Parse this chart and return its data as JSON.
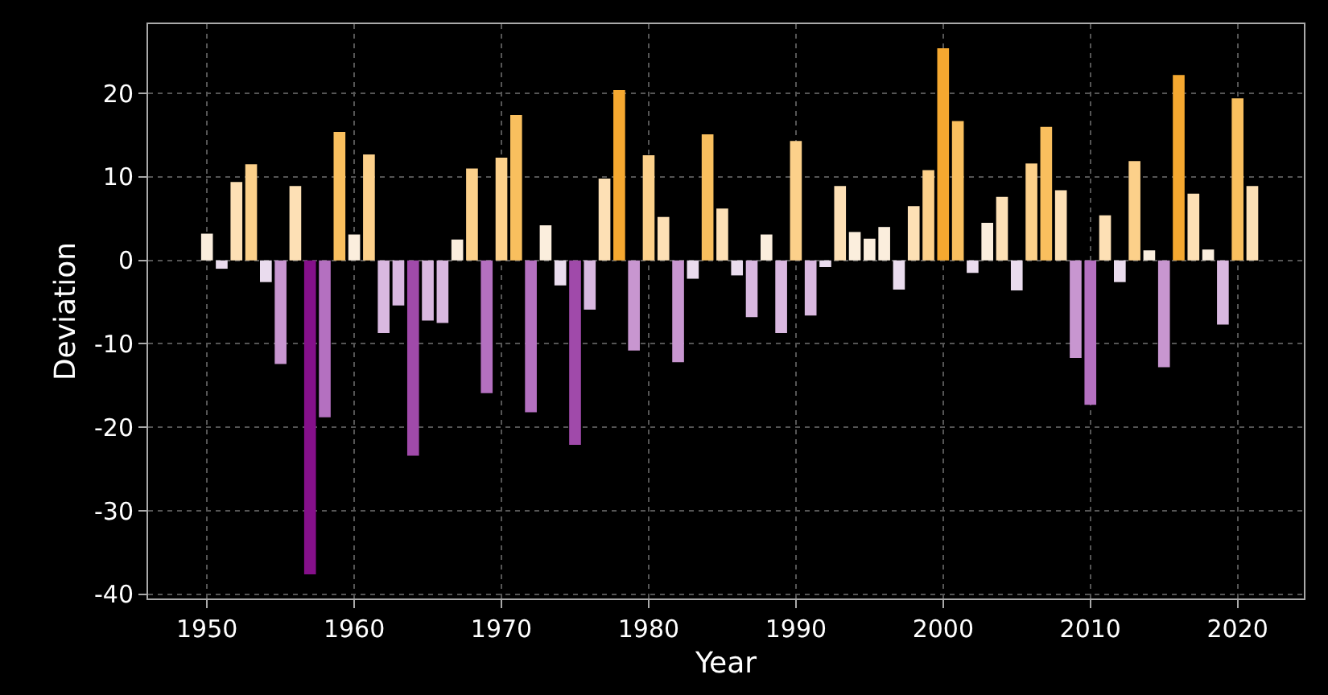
{
  "chart_data": {
    "type": "bar",
    "xlabel": "Year",
    "ylabel": "Deviation",
    "x": [
      1950,
      1951,
      1952,
      1953,
      1954,
      1955,
      1956,
      1957,
      1958,
      1959,
      1960,
      1961,
      1962,
      1963,
      1964,
      1965,
      1966,
      1967,
      1968,
      1969,
      1970,
      1971,
      1972,
      1973,
      1974,
      1975,
      1976,
      1977,
      1978,
      1979,
      1980,
      1981,
      1982,
      1983,
      1984,
      1985,
      1986,
      1987,
      1988,
      1989,
      1990,
      1991,
      1992,
      1993,
      1994,
      1995,
      1996,
      1997,
      1998,
      1999,
      2000,
      2001,
      2002,
      2003,
      2004,
      2005,
      2006,
      2007,
      2008,
      2009,
      2010,
      2011,
      2012,
      2013,
      2014,
      2015,
      2016,
      2017,
      2018,
      2019,
      2020,
      2021
    ],
    "values": [
      3.2,
      -1.0,
      9.4,
      11.5,
      -2.6,
      -12.4,
      8.9,
      -37.6,
      -18.8,
      15.4,
      3.1,
      12.7,
      -8.7,
      -5.4,
      -23.4,
      -7.2,
      -7.5,
      2.5,
      11.0,
      -15.9,
      12.3,
      17.4,
      -18.2,
      4.2,
      -3.0,
      -22.1,
      -5.9,
      9.8,
      20.4,
      -10.8,
      12.6,
      5.2,
      -12.2,
      -2.2,
      15.1,
      6.2,
      -1.8,
      -6.8,
      3.1,
      -8.7,
      14.3,
      -6.6,
      -0.8,
      8.9,
      3.4,
      2.6,
      4.0,
      -3.5,
      6.5,
      10.8,
      25.4,
      16.7,
      -1.5,
      4.5,
      7.6,
      -3.6,
      11.6,
      16.0,
      8.4,
      -11.7,
      -17.3,
      5.4,
      -2.6,
      11.9,
      1.2,
      -12.8,
      22.2,
      8.0,
      1.3,
      -7.7,
      19.4,
      8.9
    ],
    "colors": [
      "#fbeedd",
      "#eadcee",
      "#fde0b5",
      "#fcd08a",
      "#eadcee",
      "#c896d0",
      "#fde0b5",
      "#85108a",
      "#b470c0",
      "#f9bf5e",
      "#fbeedd",
      "#fcd08a",
      "#d9b8e0",
      "#d9b8e0",
      "#a04aaa",
      "#d9b8e0",
      "#d9b8e0",
      "#fbeedd",
      "#fcd08a",
      "#b470c0",
      "#fcd08a",
      "#f9bf5e",
      "#b470c0",
      "#fbeedd",
      "#eadcee",
      "#a04aaa",
      "#d9b8e0",
      "#fde0b5",
      "#f5a830",
      "#c896d0",
      "#fcd08a",
      "#fde0b5",
      "#c896d0",
      "#eadcee",
      "#f9bf5e",
      "#fde0b5",
      "#eadcee",
      "#d9b8e0",
      "#fbeedd",
      "#d9b8e0",
      "#fcd08a",
      "#d9b8e0",
      "#eadcee",
      "#fde0b5",
      "#fbeedd",
      "#fbeedd",
      "#fbeedd",
      "#eadcee",
      "#fde0b5",
      "#fcd08a",
      "#f5a830",
      "#f9bf5e",
      "#eadcee",
      "#fbeedd",
      "#fde0b5",
      "#eadcee",
      "#fcd08a",
      "#f9bf5e",
      "#fde0b5",
      "#c896d0",
      "#b470c0",
      "#fde0b5",
      "#eadcee",
      "#fcd08a",
      "#fbeedd",
      "#c896d0",
      "#f5a830",
      "#fde0b5",
      "#fbeedd",
      "#d9b8e0",
      "#f9bf5e",
      "#fde0b5"
    ],
    "xlim": [
      1946,
      2024.5
    ],
    "xticks": [
      1950,
      1960,
      1970,
      1980,
      1990,
      2000,
      2010,
      2020
    ],
    "ylim": [
      -40.5,
      28.3
    ],
    "yticks": [
      -40,
      -30,
      -20,
      -10,
      0,
      10,
      20
    ],
    "grid": true
  }
}
